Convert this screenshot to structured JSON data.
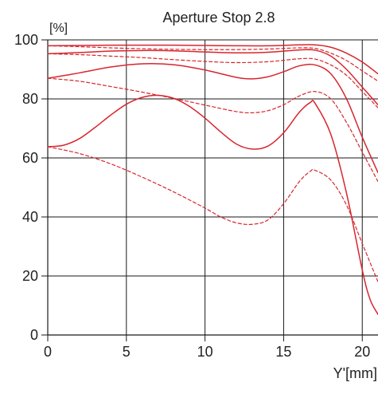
{
  "chart_data": {
    "type": "line",
    "title": "Aperture Stop 2.8",
    "ylabel": "[%]",
    "xlabel": "Y'[mm]",
    "xlim": [
      0,
      21
    ],
    "ylim": [
      0,
      100
    ],
    "x_ticks": [
      "0",
      "5",
      "10",
      "15",
      "20"
    ],
    "y_ticks": [
      "0",
      "20",
      "40",
      "60",
      "80",
      "100"
    ],
    "grid": true,
    "line_color": "#d7262e",
    "series": [
      {
        "style": "solid",
        "points": [
          [
            0,
            98.0
          ],
          [
            2,
            98.1
          ],
          [
            4,
            98.2
          ],
          [
            6,
            98.2
          ],
          [
            8,
            98.2
          ],
          [
            10,
            98.1
          ],
          [
            12,
            98.0
          ],
          [
            14,
            98.0
          ],
          [
            16,
            98.3
          ],
          [
            17,
            98.3
          ],
          [
            18,
            97.5
          ],
          [
            19,
            95.5
          ],
          [
            20,
            92.5
          ],
          [
            21,
            88.5
          ]
        ]
      },
      {
        "style": "dashed",
        "points": [
          [
            0,
            98.0
          ],
          [
            2,
            97.7
          ],
          [
            4,
            97.3
          ],
          [
            6,
            97.0
          ],
          [
            8,
            96.8
          ],
          [
            10,
            96.7
          ],
          [
            12,
            96.7
          ],
          [
            14,
            96.9
          ],
          [
            16,
            97.3
          ],
          [
            17,
            97.1
          ],
          [
            18,
            95.5
          ],
          [
            19,
            93.0
          ],
          [
            20,
            89.5
          ],
          [
            21,
            86.0
          ]
        ]
      },
      {
        "style": "solid",
        "points": [
          [
            0,
            95.3
          ],
          [
            2,
            95.7
          ],
          [
            4,
            96.2
          ],
          [
            6,
            96.4
          ],
          [
            8,
            96.3
          ],
          [
            10,
            95.9
          ],
          [
            12,
            95.6
          ],
          [
            14,
            95.8
          ],
          [
            16,
            96.6
          ],
          [
            17,
            96.5
          ],
          [
            18,
            94.5
          ],
          [
            19,
            90.0
          ],
          [
            20,
            84.0
          ],
          [
            21,
            78.0
          ]
        ]
      },
      {
        "style": "dashed",
        "points": [
          [
            0,
            95.3
          ],
          [
            2,
            95.0
          ],
          [
            4,
            94.5
          ],
          [
            6,
            94.0
          ],
          [
            8,
            93.3
          ],
          [
            10,
            92.7
          ],
          [
            12,
            92.3
          ],
          [
            14,
            92.6
          ],
          [
            16,
            93.6
          ],
          [
            17,
            93.5
          ],
          [
            18,
            91.5
          ],
          [
            19,
            88.0
          ],
          [
            20,
            82.5
          ],
          [
            21,
            77.0
          ]
        ]
      },
      {
        "style": "solid",
        "points": [
          [
            0,
            87.0
          ],
          [
            2,
            88.8
          ],
          [
            4,
            90.8
          ],
          [
            6,
            91.9
          ],
          [
            8,
            91.6
          ],
          [
            10,
            89.8
          ],
          [
            12,
            87.3
          ],
          [
            13,
            86.8
          ],
          [
            14,
            87.5
          ],
          [
            15,
            89.2
          ],
          [
            16,
            91.2
          ],
          [
            17,
            91.5
          ],
          [
            18,
            88.5
          ],
          [
            19,
            80.0
          ],
          [
            20,
            67.0
          ],
          [
            21,
            55.0
          ]
        ]
      },
      {
        "style": "dashed",
        "points": [
          [
            0,
            87.0
          ],
          [
            2,
            86.0
          ],
          [
            4,
            84.2
          ],
          [
            6,
            82.3
          ],
          [
            8,
            80.2
          ],
          [
            10,
            77.9
          ],
          [
            12,
            75.7
          ],
          [
            13,
            75.3
          ],
          [
            14,
            76.0
          ],
          [
            15,
            78.0
          ],
          [
            16,
            81.0
          ],
          [
            17,
            82.5
          ],
          [
            18,
            80.0
          ],
          [
            19,
            72.0
          ],
          [
            20,
            62.0
          ],
          [
            21,
            52.0
          ]
        ]
      },
      {
        "style": "solid",
        "points": [
          [
            0,
            63.8
          ],
          [
            1,
            64.3
          ],
          [
            2,
            66.5
          ],
          [
            3,
            70.3
          ],
          [
            4,
            74.5
          ],
          [
            5,
            78.2
          ],
          [
            6,
            80.5
          ],
          [
            7,
            81.2
          ],
          [
            8,
            80.2
          ],
          [
            9,
            77.5
          ],
          [
            10,
            73.5
          ],
          [
            11,
            68.8
          ],
          [
            12,
            64.7
          ],
          [
            13,
            63.0
          ],
          [
            14,
            64.0
          ],
          [
            15,
            68.5
          ],
          [
            16,
            75.5
          ],
          [
            16.7,
            78.8
          ],
          [
            17,
            78.5
          ],
          [
            18,
            68.0
          ],
          [
            19,
            48.0
          ],
          [
            20,
            22.0
          ],
          [
            20.5,
            12.0
          ],
          [
            21,
            7.0
          ]
        ]
      },
      {
        "style": "dashed",
        "points": [
          [
            0,
            63.8
          ],
          [
            2,
            61.5
          ],
          [
            4,
            58.0
          ],
          [
            6,
            53.5
          ],
          [
            8,
            48.5
          ],
          [
            10,
            43.0
          ],
          [
            11,
            40.0
          ],
          [
            12,
            38.0
          ],
          [
            13,
            37.5
          ],
          [
            14,
            39.0
          ],
          [
            15,
            44.5
          ],
          [
            16,
            52.0
          ],
          [
            16.7,
            55.5
          ],
          [
            17,
            55.8
          ],
          [
            18,
            52.5
          ],
          [
            19,
            44.0
          ],
          [
            20,
            31.0
          ],
          [
            21,
            18.0
          ]
        ]
      }
    ]
  }
}
